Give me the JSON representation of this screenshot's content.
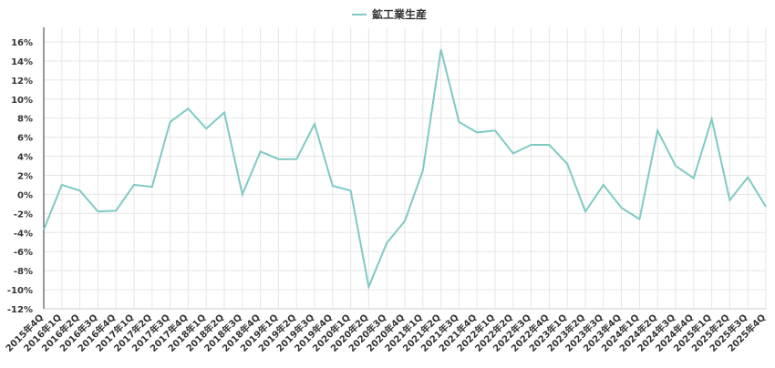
{
  "chart_data": {
    "type": "line",
    "categories": [
      "2015年4Q",
      "2016年1Q",
      "2016年2Q",
      "2016年3Q",
      "2016年4Q",
      "2017年1Q",
      "2017年2Q",
      "2017年3Q",
      "2017年4Q",
      "2018年1Q",
      "2018年2Q",
      "2018年3Q",
      "2018年4Q",
      "2019年1Q",
      "2019年2Q",
      "2019年3Q",
      "2019年4Q",
      "2020年1Q",
      "2020年2Q",
      "2020年3Q",
      "2020年4Q",
      "2021年1Q",
      "2021年2Q",
      "2021年3Q",
      "2021年4Q",
      "2022年1Q",
      "2022年2Q",
      "2022年3Q",
      "2022年4Q",
      "2023年1Q",
      "2023年2Q",
      "2023年3Q",
      "2023年4Q",
      "2024年1Q",
      "2024年2Q",
      "2024年3Q",
      "2024年4Q",
      "2025年1Q",
      "2025年2Q",
      "2025年3Q",
      "2025年4Q"
    ],
    "series": [
      {
        "name": "鉱工業生産",
        "color": "#7fcac3",
        "values": [
          -3.7,
          1.0,
          0.4,
          -1.8,
          -1.7,
          1.0,
          0.8,
          7.6,
          9.0,
          6.9,
          8.6,
          0.0,
          4.5,
          3.7,
          3.7,
          7.4,
          0.9,
          0.4,
          -9.7,
          -5.1,
          -2.8,
          2.5,
          15.2,
          7.6,
          6.5,
          6.7,
          4.3,
          5.2,
          5.2,
          3.2,
          -1.8,
          1.0,
          -1.4,
          -2.6,
          6.7,
          3.0,
          1.7,
          7.9,
          -0.6,
          1.8,
          -1.3
        ]
      }
    ],
    "ylim": [
      -12,
      16
    ],
    "yticks": [
      {
        "value": -12,
        "label": "-12%"
      },
      {
        "value": -10,
        "label": "-10%"
      },
      {
        "value": -8,
        "label": "-8%"
      },
      {
        "value": -6,
        "label": "-6%"
      },
      {
        "value": -4,
        "label": "-4%"
      },
      {
        "value": -2,
        "label": "-2%"
      },
      {
        "value": 0,
        "label": "0%"
      },
      {
        "value": 2,
        "label": "2%"
      },
      {
        "value": 4,
        "label": "4%"
      },
      {
        "value": 6,
        "label": "6%"
      },
      {
        "value": 8,
        "label": "8%"
      },
      {
        "value": 10,
        "label": "10%"
      },
      {
        "value": 12,
        "label": "12%"
      },
      {
        "value": 14,
        "label": "14%"
      },
      {
        "value": 16,
        "label": "16%"
      }
    ],
    "grid": true,
    "legend": "top"
  }
}
